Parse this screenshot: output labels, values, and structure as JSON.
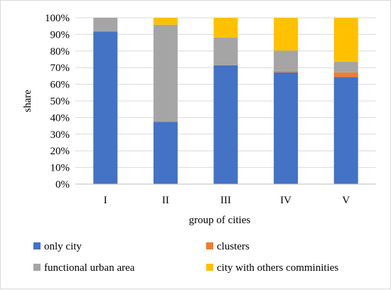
{
  "chart_data": {
    "type": "bar",
    "stacked": true,
    "normalized": true,
    "title": "",
    "xlabel": "group of cities",
    "ylabel": "share",
    "ylim": [
      0,
      100
    ],
    "y_ticks": [
      "0%",
      "10%",
      "20%",
      "30%",
      "40%",
      "50%",
      "60%",
      "70%",
      "80%",
      "90%",
      "100%"
    ],
    "categories": [
      "I",
      "II",
      "III",
      "IV",
      "V"
    ],
    "series": [
      {
        "name": "only city",
        "color": "#4472c4",
        "values": [
          91.7,
          37.5,
          71.4,
          67.2,
          64.3
        ]
      },
      {
        "name": "clusters",
        "color": "#ed7d31",
        "values": [
          0,
          0,
          0,
          0.8,
          2.9
        ]
      },
      {
        "name": "functional urban area",
        "color": "#a5a5a5",
        "values": [
          8.3,
          58.3,
          16.7,
          12.3,
          6.4
        ]
      },
      {
        "name": "city with others comminities",
        "color": "#ffc000",
        "values": [
          0,
          4.2,
          11.9,
          19.7,
          26.4
        ]
      }
    ],
    "grid": true,
    "legend_position": "bottom"
  }
}
